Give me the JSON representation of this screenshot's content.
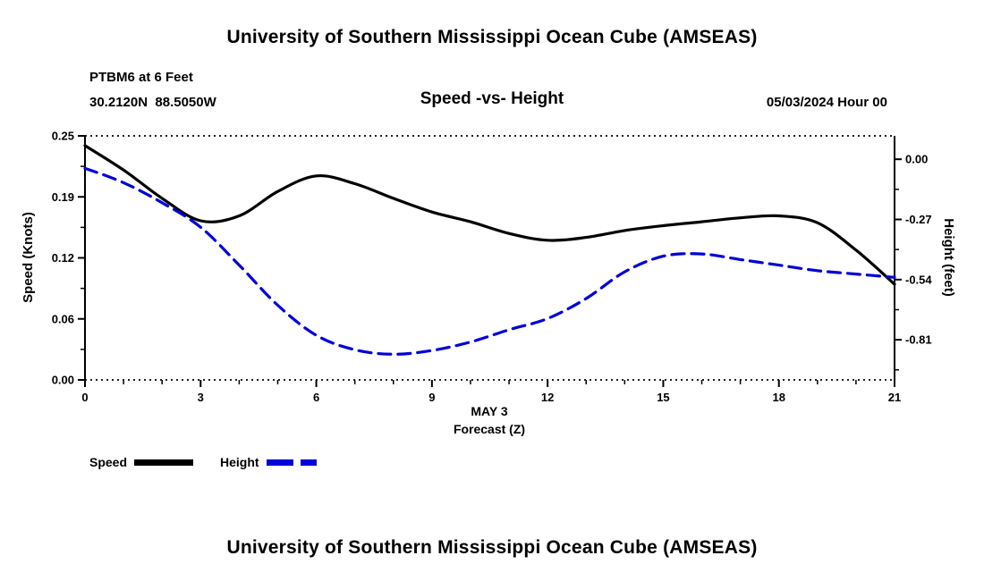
{
  "page": {
    "title_top": "University of Southern Mississippi Ocean Cube (AMSEAS)",
    "title_bottom": "University of Southern Mississippi Ocean Cube (AMSEAS)"
  },
  "header": {
    "station": "PTBM6 at 6 Feet",
    "coordinates": "30.2120N  88.5050W",
    "subtitle": "Speed -vs- Height",
    "datetime": "05/03/2024 Hour 00"
  },
  "chart_data": {
    "type": "line",
    "title": "Speed -vs- Height",
    "x_label_line1": "MAY 3",
    "x_label_line2": "Forecast (Z)",
    "y_left_label": "Speed (Knots)",
    "y_right_label": "Height (feet)",
    "x_range": [
      0,
      21
    ],
    "x_ticks": [
      0,
      3,
      6,
      9,
      12,
      15,
      18,
      21
    ],
    "x_minor_step": 1,
    "y_left_range": [
      0,
      0.25
    ],
    "y_left_ticks": [
      "0.25",
      "0.19",
      "0.12",
      "0.06",
      "0.00"
    ],
    "y_left_tick_values": [
      0.25,
      0.1875,
      0.125,
      0.0625,
      0
    ],
    "y_right_range": [
      -0.99,
      0.105
    ],
    "y_right_ticks": [
      "0.00",
      "-0.27",
      "-0.54",
      "-0.81"
    ],
    "y_right_tick_values": [
      0,
      -0.27,
      -0.54,
      -0.81
    ],
    "grid": "dotted-top-bottom",
    "legend_position": "bottom-left",
    "x": [
      0,
      1,
      2,
      3,
      4,
      5,
      6,
      7,
      8,
      9,
      10,
      11,
      12,
      13,
      14,
      15,
      16,
      17,
      18,
      19,
      20,
      21
    ],
    "series": [
      {
        "name": "Speed",
        "axis": "left",
        "units": "Knots",
        "color": "#000000",
        "style": "solid",
        "values": [
          0.24,
          0.215,
          0.186,
          0.163,
          0.168,
          0.193,
          0.209,
          0.201,
          0.186,
          0.172,
          0.162,
          0.15,
          0.143,
          0.146,
          0.153,
          0.158,
          0.162,
          0.166,
          0.168,
          0.161,
          0.133,
          0.098
        ]
      },
      {
        "name": "Height",
        "axis": "right",
        "units": "feet",
        "color": "#0000d8",
        "style": "dashed",
        "values": [
          -0.04,
          -0.105,
          -0.195,
          -0.305,
          -0.475,
          -0.655,
          -0.79,
          -0.855,
          -0.875,
          -0.858,
          -0.82,
          -0.765,
          -0.715,
          -0.625,
          -0.505,
          -0.435,
          -0.425,
          -0.45,
          -0.475,
          -0.5,
          -0.515,
          -0.53
        ]
      }
    ],
    "legend": [
      {
        "label": "Speed",
        "color": "#000000",
        "style": "solid"
      },
      {
        "label": "Height",
        "color": "#0000d8",
        "style": "dashed"
      }
    ]
  }
}
